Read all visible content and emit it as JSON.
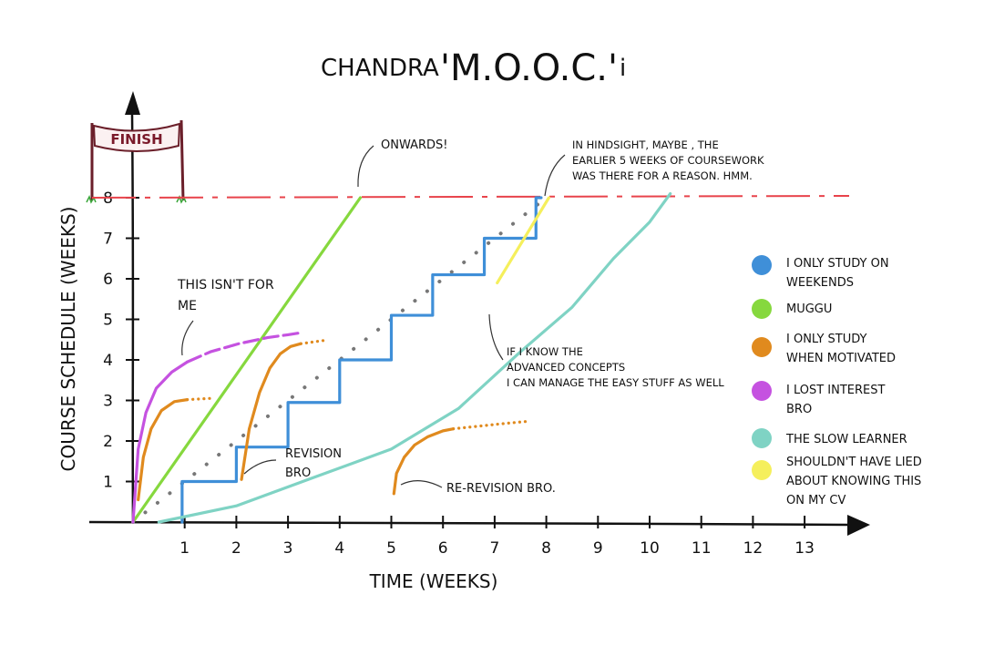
{
  "chart_data": {
    "type": "line",
    "title_prefix": "CHANDRA",
    "title_main": "'M.O.O.C.'",
    "title_suffix": "i",
    "xlabel": "TIME (WEEKS)",
    "ylabel": "COURSE SCHEDULE (WEEKS)",
    "x_ticks": [
      "1",
      "2",
      "3",
      "4",
      "5",
      "6",
      "7",
      "8",
      "9",
      "10",
      "11",
      "12",
      "13"
    ],
    "y_ticks": [
      "1",
      "2",
      "3",
      "4",
      "5",
      "6",
      "7",
      "8"
    ],
    "xlim": [
      0,
      13.5
    ],
    "ylim": [
      0,
      8.7
    ],
    "finish_banner": "FINISH",
    "finish_line_y": 8,
    "legend_position": "right",
    "colors": {
      "weekends": "#3f8fd8",
      "muggu": "#86d83e",
      "motivated": "#e08a1e",
      "lost_interest": "#c552e0",
      "slow_learner": "#7fd3c4",
      "cv": "#f5ef5c",
      "finish_line": "#e8434b",
      "diagonal": "#777777"
    },
    "legend": [
      {
        "key": "weekends",
        "label_line1": "I ONLY STUDY ON",
        "label_line2": "WEEKENDS"
      },
      {
        "key": "muggu",
        "label_line1": "MUGGU",
        "label_line2": ""
      },
      {
        "key": "motivated",
        "label_line1": "I ONLY STUDY",
        "label_line2": "WHEN MOTIVATED"
      },
      {
        "key": "lost_interest",
        "label_line1": "I LOST INTEREST",
        "label_line2": "BRO"
      },
      {
        "key": "slow_learner",
        "label_line1": "THE SLOW LEARNER",
        "label_line2": ""
      },
      {
        "key": "cv",
        "label_line1": "SHOULDN'T HAVE LIED",
        "label_line2": "ABOUT KNOWING THIS",
        "label_line3": "ON MY CV"
      }
    ],
    "annotations": {
      "onwards": "ONWARDS!",
      "hindsight_1": "IN HINDSIGHT, MAYBE , THE",
      "hindsight_2": "EARLIER 5 WEEKS OF COURSEWORK",
      "hindsight_3": "WAS THERE FOR A REASON. HMM.",
      "not_for_me_1": "THIS ISN'T FOR",
      "not_for_me_2": "ME",
      "advanced_1": "IF I KNOW THE",
      "advanced_2": "ADVANCED CONCEPTS",
      "advanced_3": "I CAN MANAGE THE EASY STUFF AS WELL",
      "revision_1": "REVISION",
      "revision_2": "BRO",
      "rerevision": "RE-REVISION BRO."
    },
    "series": [
      {
        "key": "diagonal",
        "style": "dotted",
        "points": [
          [
            0,
            0
          ],
          [
            8,
            8
          ]
        ]
      },
      {
        "key": "weekends",
        "style": "step",
        "points": [
          [
            0.95,
            0
          ],
          [
            1.05,
            1
          ],
          [
            2,
            1
          ],
          [
            2.05,
            1.85
          ],
          [
            3,
            1.85
          ],
          [
            3.05,
            2.95
          ],
          [
            4,
            2.95
          ],
          [
            4.05,
            4
          ],
          [
            5,
            4
          ],
          [
            5.05,
            5.1
          ],
          [
            5.8,
            5.1
          ],
          [
            5.85,
            6.1
          ],
          [
            6.8,
            6.1
          ],
          [
            6.85,
            7
          ],
          [
            7.8,
            7
          ],
          [
            7.9,
            8
          ]
        ]
      },
      {
        "key": "muggu",
        "style": "solid",
        "points": [
          [
            0,
            0
          ],
          [
            4.4,
            8
          ]
        ]
      },
      {
        "key": "slow_learner",
        "style": "solid",
        "points": [
          [
            0.5,
            0
          ],
          [
            2,
            0.4
          ],
          [
            3.5,
            1.1
          ],
          [
            5,
            1.8
          ],
          [
            6.3,
            2.8
          ],
          [
            7.5,
            4.2
          ],
          [
            8.5,
            5.3
          ],
          [
            9.3,
            6.5
          ],
          [
            10,
            7.4
          ],
          [
            10.4,
            8.1
          ]
        ]
      },
      {
        "key": "cv",
        "style": "solid",
        "points": [
          [
            7.05,
            5.9
          ],
          [
            8.05,
            8
          ]
        ]
      },
      {
        "key": "lost_interest",
        "style": "solid",
        "points": [
          [
            0,
            0
          ],
          [
            0.1,
            1.8
          ],
          [
            0.25,
            2.7
          ],
          [
            0.45,
            3.3
          ],
          [
            0.75,
            3.7
          ],
          [
            1.05,
            3.95
          ]
        ]
      },
      {
        "key": "lost_interest",
        "style": "dashed",
        "points": [
          [
            1.05,
            3.95
          ],
          [
            1.5,
            4.2
          ],
          [
            2.05,
            4.4
          ],
          [
            2.6,
            4.55
          ],
          [
            3,
            4.62
          ],
          [
            3.25,
            4.67
          ]
        ]
      },
      {
        "key": "motivated",
        "style": "solid",
        "points": [
          [
            0.1,
            0.55
          ],
          [
            0.2,
            1.6
          ],
          [
            0.35,
            2.3
          ],
          [
            0.55,
            2.75
          ],
          [
            0.8,
            2.97
          ],
          [
            1.05,
            3.02
          ]
        ]
      },
      {
        "key": "motivated",
        "style": "dotted",
        "points": [
          [
            1.05,
            3.02
          ],
          [
            1.5,
            3.05
          ]
        ]
      },
      {
        "key": "motivated",
        "style": "solid",
        "points": [
          [
            2.1,
            1.05
          ],
          [
            2.25,
            2.3
          ],
          [
            2.45,
            3.2
          ],
          [
            2.65,
            3.8
          ],
          [
            2.85,
            4.15
          ],
          [
            3.05,
            4.33
          ],
          [
            3.25,
            4.4
          ]
        ]
      },
      {
        "key": "motivated",
        "style": "dotted",
        "points": [
          [
            3.25,
            4.4
          ],
          [
            3.7,
            4.48
          ]
        ]
      },
      {
        "key": "motivated",
        "style": "solid",
        "points": [
          [
            5.05,
            0.7
          ],
          [
            5.1,
            1.2
          ],
          [
            5.25,
            1.6
          ],
          [
            5.45,
            1.9
          ],
          [
            5.7,
            2.1
          ],
          [
            6,
            2.25
          ],
          [
            6.2,
            2.3
          ]
        ]
      },
      {
        "key": "motivated",
        "style": "dotted",
        "points": [
          [
            6.2,
            2.3
          ],
          [
            7.1,
            2.42
          ],
          [
            7.6,
            2.48
          ]
        ]
      }
    ]
  }
}
